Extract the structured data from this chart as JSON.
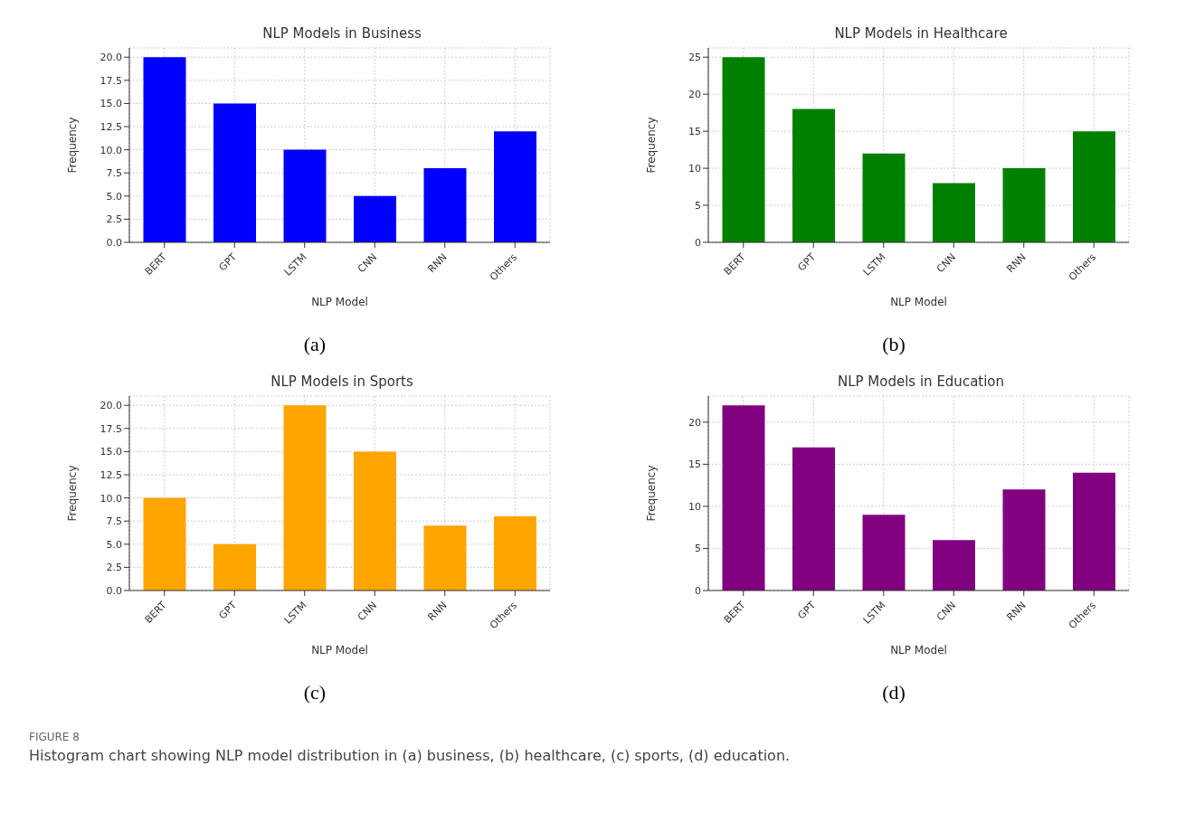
{
  "chart_data": [
    {
      "type": "bar",
      "title": "NLP Models in Business",
      "xlabel": "NLP Model",
      "ylabel": "Frequency",
      "categories": [
        "BERT",
        "GPT",
        "LSTM",
        "CNN",
        "RNN",
        "Others"
      ],
      "values": [
        20,
        15,
        10,
        5,
        8,
        12
      ],
      "color": "#0000ff",
      "ylim": [
        0,
        21
      ],
      "yticks": [
        {
          "value": 0,
          "label": "0.0"
        },
        {
          "value": 2.5,
          "label": "2.5"
        },
        {
          "value": 5,
          "label": "5.0"
        },
        {
          "value": 7.5,
          "label": "7.5"
        },
        {
          "value": 10,
          "label": "10.0"
        },
        {
          "value": 12.5,
          "label": "12.5"
        },
        {
          "value": 15,
          "label": "15.0"
        },
        {
          "value": 17.5,
          "label": "17.5"
        },
        {
          "value": 20,
          "label": "20.0"
        }
      ],
      "grid": true,
      "annotations": [
        "(a)"
      ]
    },
    {
      "type": "bar",
      "title": "NLP Models in Healthcare",
      "xlabel": "NLP Model",
      "ylabel": "Frequency",
      "categories": [
        "BERT",
        "GPT",
        "LSTM",
        "CNN",
        "RNN",
        "Others"
      ],
      "values": [
        25,
        18,
        12,
        8,
        10,
        15
      ],
      "color": "#008000",
      "ylim": [
        0,
        26.25
      ],
      "yticks": [
        0,
        5,
        10,
        15,
        20,
        25
      ],
      "grid": true,
      "annotations": [
        "(b)"
      ]
    },
    {
      "type": "bar",
      "title": "NLP Models in Sports",
      "xlabel": "NLP Model",
      "ylabel": "Frequency",
      "categories": [
        "BERT",
        "GPT",
        "LSTM",
        "CNN",
        "RNN",
        "Others"
      ],
      "values": [
        10,
        5,
        20,
        15,
        7,
        8
      ],
      "color": "#ffa500",
      "ylim": [
        0,
        21
      ],
      "yticks": [
        {
          "value": 0,
          "label": "0.0"
        },
        {
          "value": 2.5,
          "label": "2.5"
        },
        {
          "value": 5,
          "label": "5.0"
        },
        {
          "value": 7.5,
          "label": "7.5"
        },
        {
          "value": 10,
          "label": "10.0"
        },
        {
          "value": 12.5,
          "label": "12.5"
        },
        {
          "value": 15,
          "label": "15.0"
        },
        {
          "value": 17.5,
          "label": "17.5"
        },
        {
          "value": 20,
          "label": "20.0"
        }
      ],
      "grid": true,
      "annotations": [
        "(c)"
      ]
    },
    {
      "type": "bar",
      "title": "NLP Models in Education",
      "xlabel": "NLP Model",
      "ylabel": "Frequency",
      "categories": [
        "BERT",
        "GPT",
        "LSTM",
        "CNN",
        "RNN",
        "Others"
      ],
      "values": [
        22,
        17,
        9,
        6,
        12,
        14
      ],
      "color": "#800080",
      "ylim": [
        0,
        23.1
      ],
      "yticks": [
        0,
        5,
        10,
        15,
        20
      ],
      "grid": true,
      "annotations": [
        "(d)",
        "FIGURE 8",
        "Histogram chart showing NLP model distribution in (a) business, (b) healthcare, (c) sports, (d) education."
      ]
    }
  ]
}
